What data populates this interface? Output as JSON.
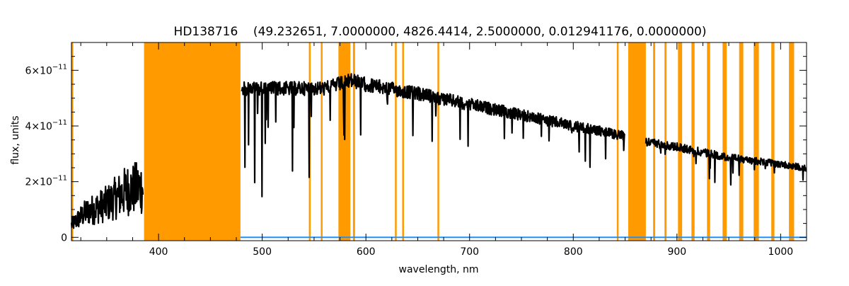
{
  "chart_data": {
    "type": "line",
    "title": "HD138716    (49.232651, 7.0000000, 4826.4414, 2.5000000, 0.012941176, 0.0000000)",
    "xlabel": "wavelength, nm",
    "ylabel": "flux, units",
    "xlim": [
      316,
      1025
    ],
    "ylim": [
      -1.2e-12,
      7e-11
    ],
    "x_ticks": [
      400,
      500,
      600,
      700,
      800,
      900,
      1000
    ],
    "x_tick_labels": [
      "400",
      "500",
      "600",
      "700",
      "800",
      "900",
      "1000"
    ],
    "y_ticks": [
      0,
      2e-11,
      4e-11,
      6e-11
    ],
    "y_tick_labels": [
      {
        "base": "0",
        "exp": ""
      },
      {
        "base": "2×10",
        "exp": "−11"
      },
      {
        "base": "4×10",
        "exp": "−11"
      },
      {
        "base": "6×10",
        "exp": "−11"
      }
    ],
    "grid": false,
    "colors": {
      "spectrum": "#000000",
      "mask": "#ff9a00",
      "error": "#1e90ff"
    },
    "masked_regions": [
      [
        316,
        317.5
      ],
      [
        386,
        479
      ],
      [
        545,
        546.5
      ],
      [
        556.5,
        558
      ],
      [
        573.5,
        585
      ],
      [
        587.5,
        589.5
      ],
      [
        628,
        629.5
      ],
      [
        635,
        636.5
      ],
      [
        669,
        670.5
      ],
      [
        842,
        843.5
      ],
      [
        853,
        870
      ],
      [
        877,
        879
      ],
      [
        888,
        890
      ],
      [
        901,
        905
      ],
      [
        914,
        917
      ],
      [
        929,
        932
      ],
      [
        944,
        948
      ],
      [
        960,
        964
      ],
      [
        974,
        979
      ],
      [
        991,
        994
      ],
      [
        1008,
        1013
      ]
    ],
    "series": [
      {
        "x": [
          316,
          330,
          350,
          370,
          385,
          386,
          479,
          480,
          520,
          560,
          586,
          600,
          650,
          700,
          750,
          800,
          850,
          852,
          870,
          900,
          950,
          1000,
          1025
        ],
        "values": [
          4.5e-12,
          9e-12,
          1.2e-11,
          1.7e-11,
          1.8e-11,
          null,
          null,
          5.6e-11,
          5.6e-11,
          5.6e-11,
          5.9e-11,
          5.75e-11,
          5.4e-11,
          5e-11,
          4.6e-11,
          4.2e-11,
          3.8e-11,
          null,
          3.6e-11,
          3.4e-11,
          3e-11,
          2.75e-11,
          2.6e-11
        ]
      },
      {
        "x": [
          479,
          1025
        ],
        "values": [
          0,
          0
        ]
      }
    ]
  }
}
